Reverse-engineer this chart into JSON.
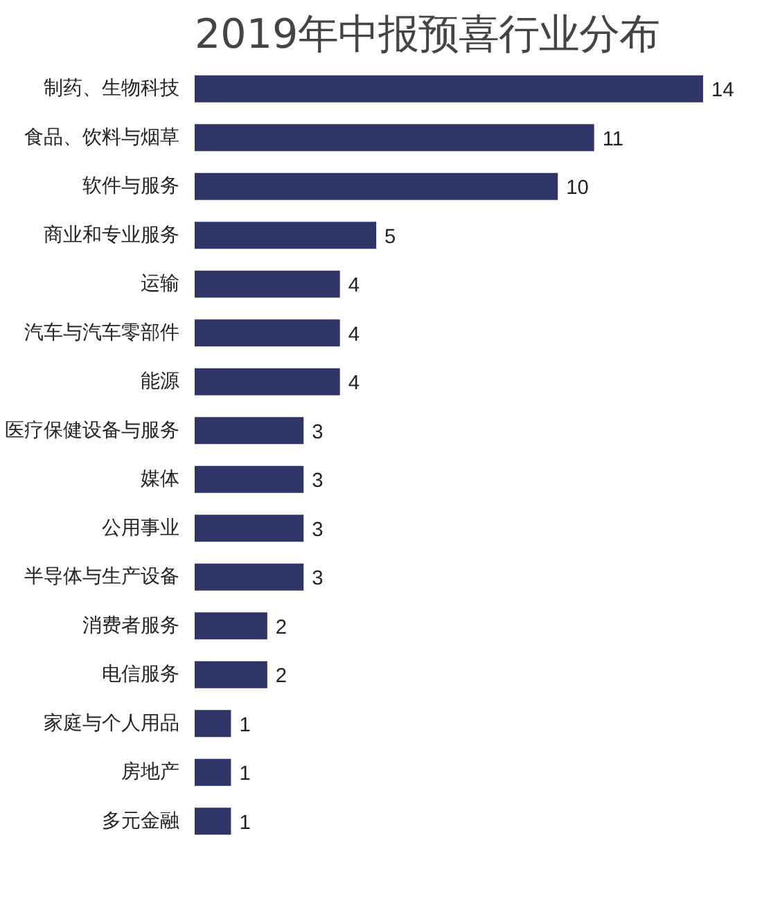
{
  "chart_data": {
    "type": "bar",
    "orientation": "horizontal",
    "title": "2019年中报预喜行业分布",
    "categories": [
      "制药、生物科技",
      "食品、饮料与烟草",
      "软件与服务",
      "商业和专业服务",
      "运输",
      "汽车与汽车零部件",
      "能源",
      "医疗保健设备与服务",
      "媒体",
      "公用事业",
      "半导体与生产设备",
      "消费者服务",
      "电信服务",
      "家庭与个人用品",
      "房地产",
      "多元金融"
    ],
    "values": [
      14,
      11,
      10,
      5,
      4,
      4,
      4,
      3,
      3,
      3,
      3,
      2,
      2,
      1,
      1,
      1
    ],
    "color": "#2f3566",
    "data_labels": true,
    "grid": false,
    "tick_labels": "y"
  }
}
